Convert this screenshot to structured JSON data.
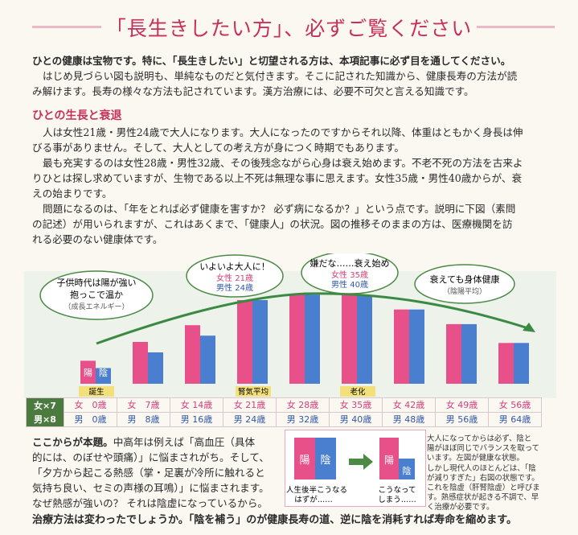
{
  "title": "「長生きしたい方」、必ずご覧ください",
  "intro": {
    "line1": "ひとの健康は宝物です。特に、「長生きしたい」と切望される方は、本項記事に必ず目を通してください。",
    "line2": "はじめ見づらい図も説明も、単純なものだと気付きます。そこに記された知識から、健康長寿の方法が読",
    "line3": "み解けます。長寿の様々な方法も記されています。漢方治療には、必要不可欠と言える知識です。"
  },
  "section_heading": "ひとの生長と衰退",
  "body": {
    "p1a": "人は女性21歳・男性24歳で大人になります。大人になったのですからそれ以降、体重はともかく身長は伸",
    "p1b": "びる事がありません。そして、大人としての考え方が身につく時期でもあります。",
    "p2a": "最も充実するのは女性28歳・男性32歳、その後残念ながら心身は衰え始めます。不老不死の方法を古来よ",
    "p2b": "りひとは探し求めていますが、生物である以上不死は無理な事に思えます。女性35歳・男性40歳からが、衰",
    "p2c": "えの始まりです。",
    "p3a": "問題になるのは、「年をとれば必ず健康を害すか？ 必ず病になるか？」という点です。説明に下図（素問",
    "p3b": "の記述）が用いられますが、これはあくまで、「健康人」の状況。図の推移そのままの方は、医療機関を訪",
    "p3c": "れる必要のない健康体です。"
  },
  "chart_data": {
    "type": "bar",
    "categories": [
      "女 0歳 / 男 0歳",
      "女 7歳 / 男 8歳",
      "女 14歳 / 男 16歳",
      "女 21歳 / 男 24歳",
      "女 28歳 / 男 32歳",
      "女 35歳 / 男 40歳",
      "女 42歳 / 男 48歳",
      "女 49歳 / 男 56歳",
      "女 56歳 / 男 64歳"
    ],
    "series": [
      {
        "name": "陽",
        "values": [
          22,
          40,
          56,
          80,
          85,
          85,
          71,
          57,
          39
        ],
        "color": "#e8508a"
      },
      {
        "name": "陰",
        "values": [
          15,
          30,
          46,
          80,
          85,
          85,
          71,
          57,
          39
        ],
        "color": "#4a7fd0"
      }
    ],
    "ylim": [
      0,
      100
    ],
    "phase_labels": [
      "誕生",
      "腎気平均",
      "老化"
    ],
    "bubbles": {
      "child": {
        "line1": "子供時代は陽が強い",
        "line2": "抱っこで温か",
        "sub": "（成長エネルギー）"
      },
      "adult": {
        "line1": "いよいよ大人に！",
        "f": "女性 21歳",
        "m": "男性 24歳"
      },
      "decline": {
        "line1": "嫌だな……衰え始め",
        "f": "女性 35歳",
        "m": "男性 40歳"
      },
      "healthy": {
        "line1": "衰えても身体健康",
        "sub": "（陰陽平均）"
      }
    },
    "table_labels": {
      "f": "女×7",
      "m": "男×8"
    },
    "ages_f": [
      "女　0歳",
      "女　7歳",
      "女 14歳",
      "女 21歳",
      "女 28歳",
      "女 35歳",
      "女 42歳",
      "女 49歳",
      "女 56歳"
    ],
    "ages_m": [
      "男　0歳",
      "男　8歳",
      "男 16歳",
      "男 24歳",
      "男 32歳",
      "男 40歳",
      "男 48歳",
      "男 56歳",
      "男 64歳"
    ]
  },
  "lower": {
    "l1": "ここからが本題。中高年は例えば「高血圧（具体",
    "l1_bold": "ここからが本題。",
    "l1_rest": "中高年は例えば「高血圧（具体",
    "l2": "的には、のぼせや頭痛）」に悩まされがち。そして、",
    "l3": "「夕方から起こる熱感（掌・足裏が冷所に触れると",
    "l4": "気持ち良い、セミの声様の耳鳴）」に悩まされます。",
    "l5": "なぜ熱感が強いの？ それは陰虚になっているから。"
  },
  "mini_diagram": {
    "yang": "陽",
    "yin": "陰",
    "left_caption_1": "人生後半こうなる",
    "left_caption_2": "はずが……",
    "right_caption_1": "こうなって",
    "right_caption_2": "しまう……"
  },
  "note": {
    "n1": "大人になってからは必ず、陰と",
    "n2": "陽がほぼ同じでバランスを取って",
    "n3": "います。左図が健康な状態。",
    "n4": "しかし現代人のほとんどは、「陰",
    "n5": "が減りすぎた」右図の状態です。",
    "n6": "これを陰虚（肝腎陰虚）と呼びま",
    "n7": "す。熱感症状が起きる不調で、早",
    "n8": "く治療が必要です。"
  },
  "bottom": "治療方法は変わったでしょうか。「陰を補う」のが健康長寿の道、逆に陰を消耗すれば寿命を縮めます。"
}
